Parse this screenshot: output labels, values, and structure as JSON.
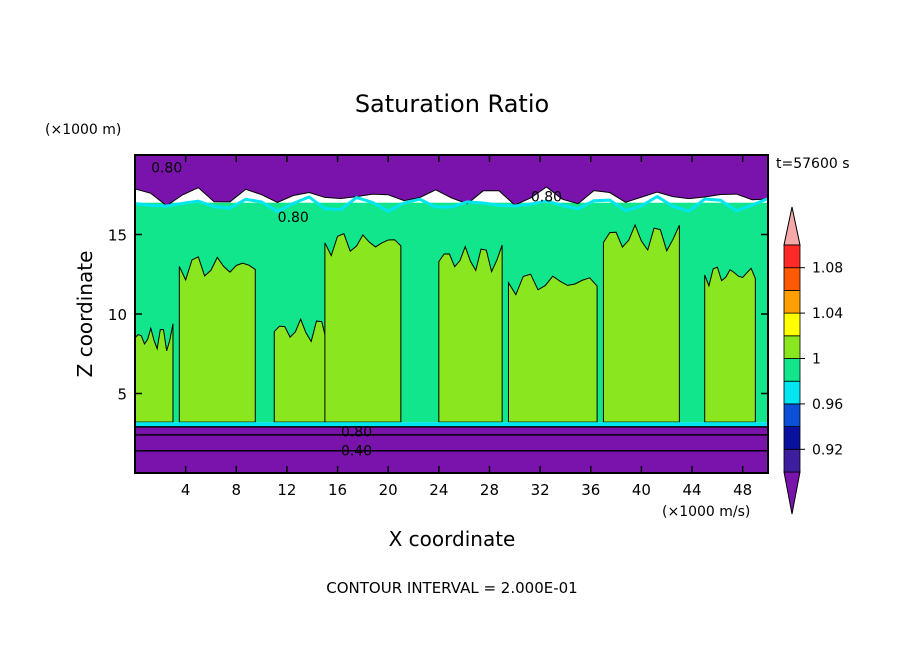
{
  "chart_data": {
    "type": "heatmap",
    "title": "Saturation Ratio",
    "xlabel": "X coordinate",
    "ylabel": "Z coordinate",
    "x_unit": "(×1000 m/s)",
    "y_unit": "(×1000 m)",
    "time_label": "t=57600 s",
    "contour_interval_label": "CONTOUR INTERVAL = 2.000E-01",
    "xlim": [
      0,
      50
    ],
    "ylim": [
      0,
      20
    ],
    "x_ticks": [
      4,
      8,
      12,
      16,
      20,
      24,
      28,
      32,
      36,
      40,
      44,
      48
    ],
    "y_ticks": [
      5,
      10,
      15
    ],
    "contour_labels": [
      {
        "text": "0.80",
        "x": 2.5,
        "y": 19.2
      },
      {
        "text": "0.80",
        "x": 12.5,
        "y": 16.1
      },
      {
        "text": "0.80",
        "x": 32.5,
        "y": 17.4
      },
      {
        "text": "0.80",
        "x": 17.5,
        "y": 2.6
      },
      {
        "text": "0.40",
        "x": 17.5,
        "y": 1.4
      }
    ],
    "colorbar": {
      "levels": [
        0.9,
        0.92,
        0.94,
        0.96,
        0.98,
        1.0,
        1.02,
        1.04,
        1.06,
        1.08,
        1.1
      ],
      "tick_labels": [
        "0.92",
        "0.96",
        "1",
        "1.04",
        "1.08"
      ],
      "colors": [
        "#3c1e9e",
        "#0a10a0",
        "#0c50d8",
        "#00e6f0",
        "#12e68c",
        "#8ae61e",
        "#ffff00",
        "#ff9e00",
        "#ff5a00",
        "#ff2a28"
      ],
      "under_color": "#7a12ac",
      "over_color": "#f4a8a8"
    },
    "regions": {
      "base_layer": {
        "z_max": 2.9,
        "value": 0.6
      },
      "low_cloud_band": {
        "z_min": 2.9,
        "z_max": 3.2,
        "value": 0.97
      },
      "mid_layer_value": 0.99,
      "updraft_columns": [
        {
          "x_center": 1.5,
          "width": 3,
          "z_top": 8.5,
          "value": 1.01
        },
        {
          "x_center": 6.5,
          "width": 6,
          "z_top": 13.0,
          "value": 1.01
        },
        {
          "x_center": 13.5,
          "width": 5,
          "z_top": 9.0,
          "value": 1.01
        },
        {
          "x_center": 18.0,
          "width": 6,
          "z_top": 14.5,
          "value": 1.01
        },
        {
          "x_center": 26.5,
          "width": 5,
          "z_top": 13.5,
          "value": 1.01
        },
        {
          "x_center": 33.0,
          "width": 7,
          "z_top": 12.0,
          "value": 1.01
        },
        {
          "x_center": 40.0,
          "width": 6,
          "z_top": 14.8,
          "value": 1.01
        },
        {
          "x_center": 47.0,
          "width": 4,
          "z_top": 12.5,
          "value": 1.01
        }
      ],
      "upper_dry_layer": {
        "z_min": 17.0,
        "value": 0.7
      }
    }
  }
}
